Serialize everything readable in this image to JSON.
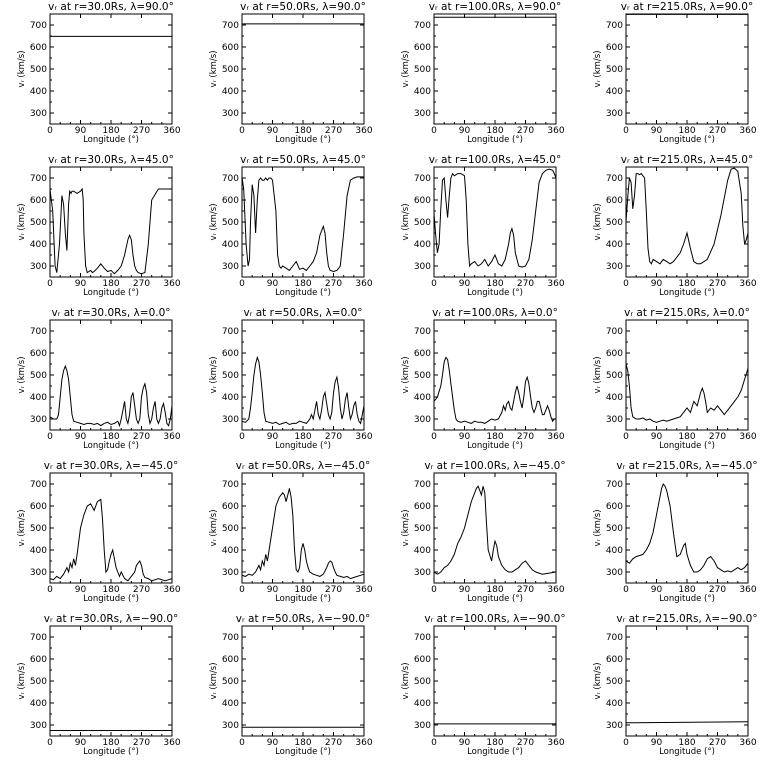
{
  "figure": {
    "xlabel": "Longitude (°)",
    "ylabel": "vᵣ (km/s)",
    "xlim": [
      0,
      360
    ],
    "ylim": [
      250,
      750
    ],
    "xticks": [
      "0",
      "90",
      "180",
      "270",
      "360"
    ],
    "yticks": [
      "300",
      "400",
      "500",
      "600",
      "700"
    ],
    "line_color": "#000000",
    "grid": false
  },
  "chart_data": [
    {
      "type": "line",
      "title": "vᵣ at r=30.0Rs, λ=90.0°",
      "x": [
        0,
        360
      ],
      "y": [
        648,
        648
      ]
    },
    {
      "type": "line",
      "title": "vᵣ at r=50.0Rs, λ=90.0°",
      "x": [
        0,
        360
      ],
      "y": [
        705,
        705
      ]
    },
    {
      "type": "line",
      "title": "vᵣ at r=100.0Rs, λ=90.0°",
      "x": [
        0,
        360
      ],
      "y": [
        735,
        735
      ]
    },
    {
      "type": "line",
      "title": "vᵣ at r=215.0Rs, λ=90.0°",
      "x": [
        0,
        360
      ],
      "y": [
        748,
        748
      ]
    },
    {
      "type": "line",
      "title": "vᵣ at r=30.0Rs, λ=45.0°",
      "x": [
        0,
        8,
        15,
        20,
        28,
        35,
        40,
        45,
        50,
        55,
        58,
        62,
        65,
        70,
        80,
        90,
        95,
        98,
        100,
        105,
        110,
        115,
        120,
        125,
        130,
        140,
        150,
        160,
        170,
        180,
        190,
        200,
        210,
        220,
        230,
        235,
        240,
        245,
        250,
        255,
        260,
        270,
        280,
        290,
        300,
        320,
        340,
        360
      ],
      "y": [
        650,
        550,
        300,
        270,
        400,
        620,
        580,
        450,
        370,
        580,
        640,
        630,
        640,
        640,
        630,
        640,
        650,
        600,
        450,
        300,
        270,
        275,
        280,
        270,
        275,
        290,
        310,
        290,
        275,
        280,
        265,
        280,
        300,
        350,
        420,
        440,
        420,
        350,
        300,
        280,
        270,
        265,
        270,
        400,
        600,
        650,
        650,
        650
      ]
    },
    {
      "type": "line",
      "title": "vᵣ at r=50.0Rs, λ=45.0°",
      "x": [
        0,
        5,
        12,
        18,
        22,
        25,
        30,
        35,
        40,
        45,
        50,
        55,
        60,
        65,
        70,
        75,
        80,
        85,
        90,
        100,
        105,
        110,
        115,
        120,
        130,
        140,
        150,
        160,
        170,
        180,
        190,
        200,
        210,
        220,
        230,
        240,
        245,
        250,
        255,
        260,
        270,
        280,
        290,
        300,
        310,
        320,
        330,
        340,
        360
      ],
      "y": [
        705,
        650,
        400,
        300,
        330,
        500,
        670,
        620,
        450,
        600,
        690,
        700,
        690,
        690,
        700,
        690,
        700,
        700,
        690,
        550,
        350,
        300,
        290,
        300,
        290,
        280,
        300,
        320,
        285,
        290,
        280,
        300,
        320,
        360,
        440,
        480,
        450,
        360,
        300,
        280,
        275,
        280,
        300,
        450,
        620,
        690,
        700,
        705,
        705
      ]
    },
    {
      "type": "line",
      "title": "vᵣ at r=100.0Rs, λ=45.0°",
      "x": [
        0,
        5,
        10,
        15,
        20,
        25,
        30,
        35,
        40,
        45,
        50,
        55,
        60,
        70,
        80,
        90,
        95,
        100,
        105,
        110,
        120,
        130,
        140,
        150,
        160,
        170,
        180,
        190,
        200,
        210,
        220,
        225,
        230,
        235,
        240,
        250,
        260,
        270,
        280,
        290,
        300,
        310,
        320,
        330,
        340,
        350,
        355,
        360
      ],
      "y": [
        540,
        440,
        360,
        400,
        560,
        690,
        700,
        600,
        520,
        620,
        700,
        720,
        710,
        720,
        720,
        710,
        600,
        400,
        300,
        310,
        320,
        300,
        310,
        330,
        300,
        320,
        350,
        310,
        300,
        330,
        400,
        450,
        470,
        440,
        360,
        300,
        295,
        300,
        330,
        420,
        550,
        680,
        720,
        735,
        740,
        735,
        720,
        700
      ]
    },
    {
      "type": "line",
      "title": "vᵣ at r=215.0Rs, λ=45.0°",
      "x": [
        0,
        5,
        10,
        15,
        20,
        25,
        30,
        35,
        40,
        45,
        50,
        55,
        60,
        65,
        70,
        75,
        80,
        90,
        100,
        110,
        120,
        130,
        140,
        150,
        160,
        170,
        180,
        190,
        200,
        210,
        220,
        240,
        260,
        280,
        300,
        310,
        320,
        330,
        340,
        345,
        350,
        355,
        360
      ],
      "y": [
        500,
        610,
        700,
        680,
        560,
        620,
        720,
        720,
        715,
        720,
        710,
        700,
        550,
        380,
        320,
        310,
        330,
        320,
        310,
        330,
        320,
        310,
        320,
        340,
        360,
        400,
        450,
        380,
        320,
        310,
        310,
        330,
        400,
        530,
        690,
        740,
        745,
        730,
        630,
        480,
        400,
        420,
        450
      ]
    },
    {
      "type": "line",
      "title": "vᵣ at r=30.0Rs, λ=0.0°",
      "x": [
        0,
        10,
        20,
        25,
        30,
        35,
        40,
        45,
        50,
        55,
        60,
        65,
        70,
        80,
        90,
        100,
        110,
        120,
        130,
        140,
        150,
        160,
        170,
        180,
        190,
        200,
        205,
        210,
        215,
        220,
        225,
        230,
        235,
        240,
        245,
        250,
        255,
        260,
        265,
        270,
        275,
        280,
        285,
        290,
        295,
        300,
        305,
        310,
        315,
        320,
        325,
        330,
        335,
        340,
        345,
        350,
        355,
        360
      ],
      "y": [
        310,
        300,
        300,
        320,
        400,
        480,
        520,
        540,
        520,
        480,
        400,
        320,
        290,
        285,
        280,
        275,
        280,
        280,
        275,
        280,
        270,
        280,
        285,
        275,
        280,
        290,
        270,
        300,
        340,
        380,
        300,
        280,
        320,
        400,
        420,
        360,
        300,
        280,
        300,
        400,
        440,
        460,
        420,
        320,
        280,
        300,
        350,
        380,
        300,
        280,
        300,
        350,
        370,
        330,
        280,
        270,
        300,
        360
      ]
    },
    {
      "type": "line",
      "title": "vᵣ at r=50.0Rs, λ=0.0°",
      "x": [
        0,
        10,
        20,
        25,
        30,
        35,
        40,
        45,
        50,
        55,
        60,
        65,
        70,
        80,
        90,
        100,
        110,
        120,
        130,
        140,
        150,
        160,
        170,
        180,
        190,
        200,
        205,
        210,
        215,
        220,
        225,
        230,
        235,
        240,
        245,
        250,
        255,
        260,
        265,
        270,
        275,
        280,
        285,
        290,
        295,
        300,
        305,
        310,
        315,
        320,
        325,
        330,
        335,
        340,
        345,
        350,
        355,
        360
      ],
      "y": [
        290,
        285,
        300,
        350,
        420,
        500,
        550,
        580,
        560,
        500,
        420,
        330,
        290,
        285,
        280,
        285,
        275,
        280,
        285,
        275,
        280,
        280,
        290,
        285,
        280,
        300,
        320,
        300,
        340,
        380,
        320,
        300,
        340,
        400,
        420,
        370,
        320,
        300,
        330,
        420,
        470,
        490,
        440,
        350,
        300,
        330,
        390,
        420,
        350,
        300,
        320,
        360,
        380,
        320,
        290,
        280,
        320,
        360
      ]
    },
    {
      "type": "line",
      "title": "vᵣ at r=100.0Rs, λ=0.0°",
      "x": [
        0,
        10,
        20,
        25,
        30,
        35,
        40,
        45,
        50,
        55,
        60,
        65,
        70,
        80,
        90,
        100,
        110,
        120,
        130,
        140,
        150,
        160,
        170,
        180,
        190,
        200,
        205,
        210,
        215,
        220,
        225,
        230,
        235,
        240,
        245,
        250,
        255,
        260,
        265,
        270,
        275,
        280,
        285,
        290,
        295,
        300,
        305,
        310,
        315,
        320,
        325,
        330,
        335,
        340,
        345,
        350,
        355,
        360
      ],
      "y": [
        380,
        400,
        450,
        500,
        560,
        580,
        570,
        520,
        460,
        400,
        340,
        300,
        290,
        285,
        290,
        285,
        280,
        290,
        285,
        285,
        280,
        290,
        300,
        295,
        300,
        330,
        360,
        340,
        370,
        380,
        350,
        340,
        380,
        420,
        450,
        420,
        380,
        350,
        400,
        470,
        490,
        460,
        400,
        350,
        330,
        350,
        380,
        380,
        350,
        320,
        320,
        340,
        360,
        340,
        310,
        290,
        300,
        300
      ]
    },
    {
      "type": "line",
      "title": "vᵣ at r=215.0Rs, λ=0.0°",
      "x": [
        0,
        5,
        10,
        15,
        20,
        25,
        30,
        40,
        50,
        60,
        70,
        80,
        90,
        100,
        110,
        120,
        130,
        140,
        150,
        160,
        170,
        180,
        190,
        200,
        210,
        215,
        220,
        225,
        230,
        235,
        240,
        250,
        260,
        270,
        280,
        290,
        300,
        310,
        320,
        330,
        340,
        350,
        360
      ],
      "y": [
        550,
        520,
        450,
        350,
        310,
        305,
        300,
        300,
        305,
        295,
        300,
        290,
        285,
        290,
        295,
        290,
        295,
        300,
        305,
        310,
        330,
        350,
        330,
        380,
        360,
        390,
        420,
        440,
        420,
        380,
        330,
        350,
        340,
        360,
        340,
        320,
        340,
        360,
        380,
        400,
        430,
        480,
        530
      ]
    },
    {
      "type": "line",
      "title": "vᵣ at r=30.0Rs, λ=−45.0°",
      "x": [
        0,
        10,
        20,
        30,
        40,
        50,
        55,
        60,
        65,
        70,
        75,
        80,
        90,
        100,
        110,
        120,
        130,
        140,
        150,
        155,
        160,
        165,
        170,
        175,
        180,
        185,
        190,
        195,
        200,
        205,
        210,
        220,
        230,
        240,
        250,
        255,
        260,
        265,
        270,
        275,
        280,
        290,
        300,
        310,
        320,
        330,
        340,
        350,
        360
      ],
      "y": [
        270,
        265,
        280,
        270,
        290,
        320,
        300,
        340,
        320,
        360,
        330,
        380,
        500,
        560,
        600,
        610,
        580,
        620,
        630,
        540,
        400,
        300,
        310,
        350,
        380,
        400,
        360,
        320,
        300,
        280,
        300,
        270,
        260,
        280,
        300,
        330,
        340,
        350,
        330,
        290,
        275,
        270,
        260,
        265,
        270,
        265,
        260,
        265,
        270
      ]
    },
    {
      "type": "line",
      "title": "vᵣ at r=50.0Rs, λ=−45.0°",
      "x": [
        0,
        10,
        20,
        30,
        40,
        50,
        55,
        60,
        65,
        70,
        75,
        80,
        90,
        100,
        110,
        120,
        125,
        130,
        135,
        140,
        145,
        150,
        155,
        160,
        165,
        170,
        175,
        180,
        185,
        190,
        195,
        200,
        210,
        220,
        230,
        240,
        250,
        255,
        260,
        265,
        270,
        275,
        280,
        290,
        300,
        310,
        320,
        330,
        340,
        350,
        360
      ],
      "y": [
        285,
        280,
        290,
        285,
        300,
        330,
        310,
        350,
        330,
        380,
        350,
        400,
        500,
        600,
        640,
        660,
        650,
        620,
        650,
        680,
        640,
        560,
        400,
        310,
        300,
        320,
        400,
        430,
        400,
        350,
        320,
        300,
        290,
        285,
        280,
        290,
        320,
        340,
        350,
        345,
        320,
        300,
        285,
        280,
        275,
        280,
        270,
        275,
        280,
        285,
        290
      ]
    },
    {
      "type": "line",
      "title": "vᵣ at r=100.0Rs, λ=−45.0°",
      "x": [
        0,
        10,
        20,
        30,
        40,
        50,
        60,
        70,
        80,
        90,
        100,
        110,
        120,
        125,
        130,
        135,
        140,
        145,
        150,
        155,
        160,
        170,
        175,
        180,
        185,
        190,
        200,
        210,
        220,
        230,
        240,
        250,
        260,
        270,
        280,
        290,
        300,
        320,
        340,
        360
      ],
      "y": [
        300,
        290,
        300,
        320,
        330,
        350,
        380,
        430,
        460,
        500,
        560,
        620,
        660,
        680,
        690,
        670,
        650,
        690,
        660,
        520,
        400,
        350,
        400,
        440,
        420,
        370,
        330,
        310,
        300,
        300,
        310,
        320,
        340,
        350,
        330,
        310,
        300,
        290,
        295,
        300
      ]
    },
    {
      "type": "line",
      "title": "vᵣ at r=215.0Rs, λ=−45.0°",
      "x": [
        0,
        10,
        20,
        30,
        40,
        50,
        60,
        70,
        80,
        90,
        100,
        105,
        110,
        115,
        120,
        130,
        140,
        150,
        160,
        165,
        170,
        175,
        180,
        190,
        200,
        210,
        220,
        230,
        240,
        250,
        260,
        270,
        280,
        290,
        300,
        310,
        320,
        330,
        340,
        350,
        360
      ],
      "y": [
        350,
        340,
        360,
        370,
        375,
        380,
        400,
        430,
        480,
        560,
        640,
        680,
        700,
        690,
        670,
        600,
        480,
        370,
        380,
        400,
        420,
        430,
        380,
        330,
        300,
        300,
        310,
        330,
        360,
        370,
        350,
        320,
        310,
        300,
        305,
        300,
        310,
        320,
        310,
        320,
        340
      ]
    },
    {
      "type": "line",
      "title": "vᵣ at r=30.0Rs, λ=−90.0°",
      "x": [
        0,
        360
      ],
      "y": [
        275,
        275
      ]
    },
    {
      "type": "line",
      "title": "vᵣ at r=50.0Rs, λ=−90.0°",
      "x": [
        0,
        360
      ],
      "y": [
        290,
        290
      ]
    },
    {
      "type": "line",
      "title": "vᵣ at r=100.0Rs, λ=−90.0°",
      "x": [
        0,
        360
      ],
      "y": [
        305,
        305
      ]
    },
    {
      "type": "line",
      "title": "vᵣ at r=215.0Rs, λ=−90.0°",
      "x": [
        0,
        360
      ],
      "y": [
        310,
        315
      ]
    }
  ]
}
